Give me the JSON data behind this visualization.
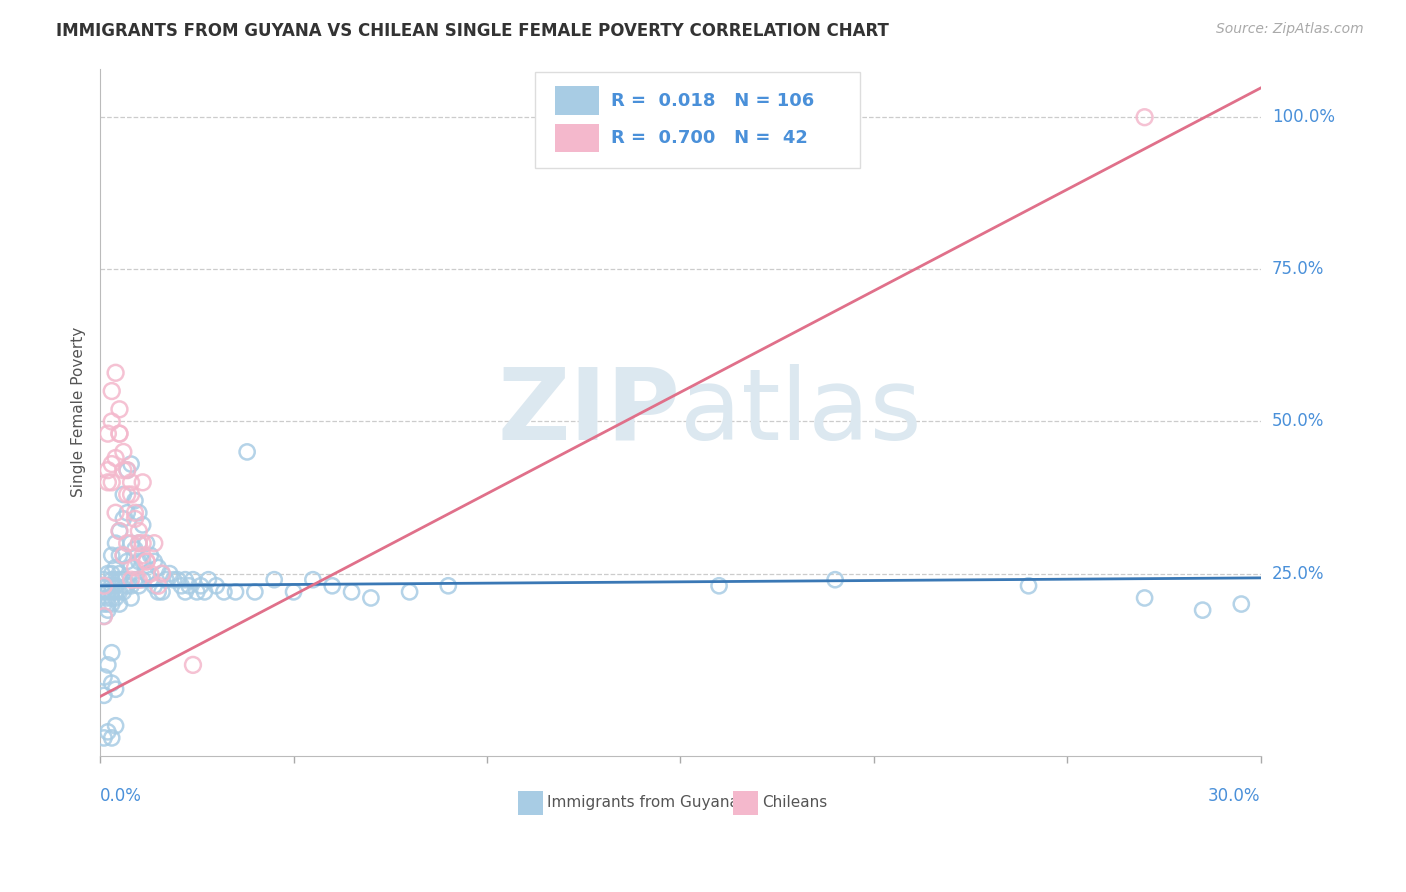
{
  "title": "IMMIGRANTS FROM GUYANA VS CHILEAN SINGLE FEMALE POVERTY CORRELATION CHART",
  "source": "Source: ZipAtlas.com",
  "ylabel": "Single Female Poverty",
  "x_range": [
    0.0,
    0.3
  ],
  "y_range": [
    -0.05,
    1.08
  ],
  "blue_R": 0.018,
  "blue_N": 106,
  "pink_R": 0.7,
  "pink_N": 42,
  "blue_color": "#a8cce4",
  "pink_color": "#f4b8cc",
  "blue_line_color": "#3a78b5",
  "pink_line_color": "#e0708a",
  "watermark_color": "#dce8f0",
  "legend_label_blue": "Immigrants from Guyana",
  "legend_label_pink": "Chileans",
  "background_color": "#ffffff",
  "grid_color": "#cccccc",
  "title_color": "#333333",
  "axis_label_color": "#4a90d9",
  "right_y_ticks": [
    0.25,
    0.5,
    0.75,
    1.0
  ],
  "right_y_labels": [
    "25.0%",
    "50.0%",
    "75.0%",
    "100.0%"
  ],
  "blue_trend_x": [
    0.0,
    0.3
  ],
  "blue_trend_y": [
    0.23,
    0.243
  ],
  "pink_trend_x": [
    0.0,
    0.3
  ],
  "pink_trend_y": [
    0.048,
    1.048
  ],
  "blue_x": [
    0.001,
    0.001,
    0.001,
    0.001,
    0.001,
    0.002,
    0.002,
    0.002,
    0.002,
    0.002,
    0.002,
    0.003,
    0.003,
    0.003,
    0.003,
    0.003,
    0.003,
    0.003,
    0.004,
    0.004,
    0.004,
    0.004,
    0.004,
    0.004,
    0.005,
    0.005,
    0.005,
    0.005,
    0.005,
    0.005,
    0.006,
    0.006,
    0.006,
    0.006,
    0.006,
    0.007,
    0.007,
    0.007,
    0.007,
    0.008,
    0.008,
    0.008,
    0.008,
    0.008,
    0.009,
    0.009,
    0.009,
    0.01,
    0.01,
    0.01,
    0.01,
    0.011,
    0.011,
    0.011,
    0.012,
    0.012,
    0.013,
    0.013,
    0.014,
    0.014,
    0.015,
    0.015,
    0.016,
    0.016,
    0.017,
    0.018,
    0.019,
    0.02,
    0.021,
    0.022,
    0.022,
    0.023,
    0.024,
    0.025,
    0.026,
    0.027,
    0.028,
    0.03,
    0.032,
    0.035,
    0.038,
    0.04,
    0.045,
    0.05,
    0.055,
    0.06,
    0.065,
    0.07,
    0.08,
    0.09,
    0.001,
    0.001,
    0.002,
    0.003,
    0.003,
    0.004,
    0.16,
    0.19,
    0.24,
    0.27,
    0.285,
    0.295,
    0.001,
    0.002,
    0.003,
    0.004
  ],
  "blue_y": [
    0.24,
    0.22,
    0.2,
    0.18,
    0.23,
    0.25,
    0.22,
    0.19,
    0.23,
    0.21,
    0.2,
    0.28,
    0.25,
    0.22,
    0.2,
    0.24,
    0.21,
    0.23,
    0.3,
    0.26,
    0.23,
    0.21,
    0.24,
    0.22,
    0.32,
    0.28,
    0.25,
    0.22,
    0.2,
    0.24,
    0.38,
    0.34,
    0.28,
    0.24,
    0.22,
    0.42,
    0.35,
    0.27,
    0.23,
    0.43,
    0.3,
    0.26,
    0.23,
    0.21,
    0.37,
    0.29,
    0.24,
    0.35,
    0.3,
    0.27,
    0.23,
    0.33,
    0.27,
    0.24,
    0.3,
    0.25,
    0.28,
    0.24,
    0.27,
    0.23,
    0.26,
    0.22,
    0.25,
    0.22,
    0.24,
    0.25,
    0.24,
    0.24,
    0.23,
    0.24,
    0.22,
    0.23,
    0.24,
    0.22,
    0.23,
    0.22,
    0.24,
    0.23,
    0.22,
    0.22,
    0.45,
    0.22,
    0.24,
    0.22,
    0.24,
    0.23,
    0.22,
    0.21,
    0.22,
    0.23,
    0.08,
    0.05,
    0.1,
    0.07,
    0.12,
    0.06,
    0.23,
    0.24,
    0.23,
    0.21,
    0.19,
    0.2,
    -0.02,
    -0.01,
    -0.02,
    0.0
  ],
  "pink_x": [
    0.001,
    0.001,
    0.002,
    0.002,
    0.003,
    0.003,
    0.003,
    0.004,
    0.004,
    0.005,
    0.005,
    0.005,
    0.006,
    0.006,
    0.007,
    0.007,
    0.008,
    0.008,
    0.009,
    0.009,
    0.01,
    0.01,
    0.011,
    0.011,
    0.012,
    0.013,
    0.014,
    0.015,
    0.016,
    0.002,
    0.003,
    0.004,
    0.005,
    0.006,
    0.007,
    0.008,
    0.009,
    0.01,
    0.011,
    0.012,
    0.024,
    0.27
  ],
  "pink_y": [
    0.23,
    0.18,
    0.48,
    0.4,
    0.55,
    0.5,
    0.43,
    0.58,
    0.35,
    0.52,
    0.32,
    0.48,
    0.45,
    0.28,
    0.42,
    0.3,
    0.38,
    0.24,
    0.35,
    0.26,
    0.3,
    0.24,
    0.4,
    0.28,
    0.27,
    0.25,
    0.3,
    0.23,
    0.25,
    0.42,
    0.4,
    0.44,
    0.48,
    0.42,
    0.38,
    0.4,
    0.34,
    0.32,
    0.3,
    0.27,
    0.1,
    1.0
  ]
}
